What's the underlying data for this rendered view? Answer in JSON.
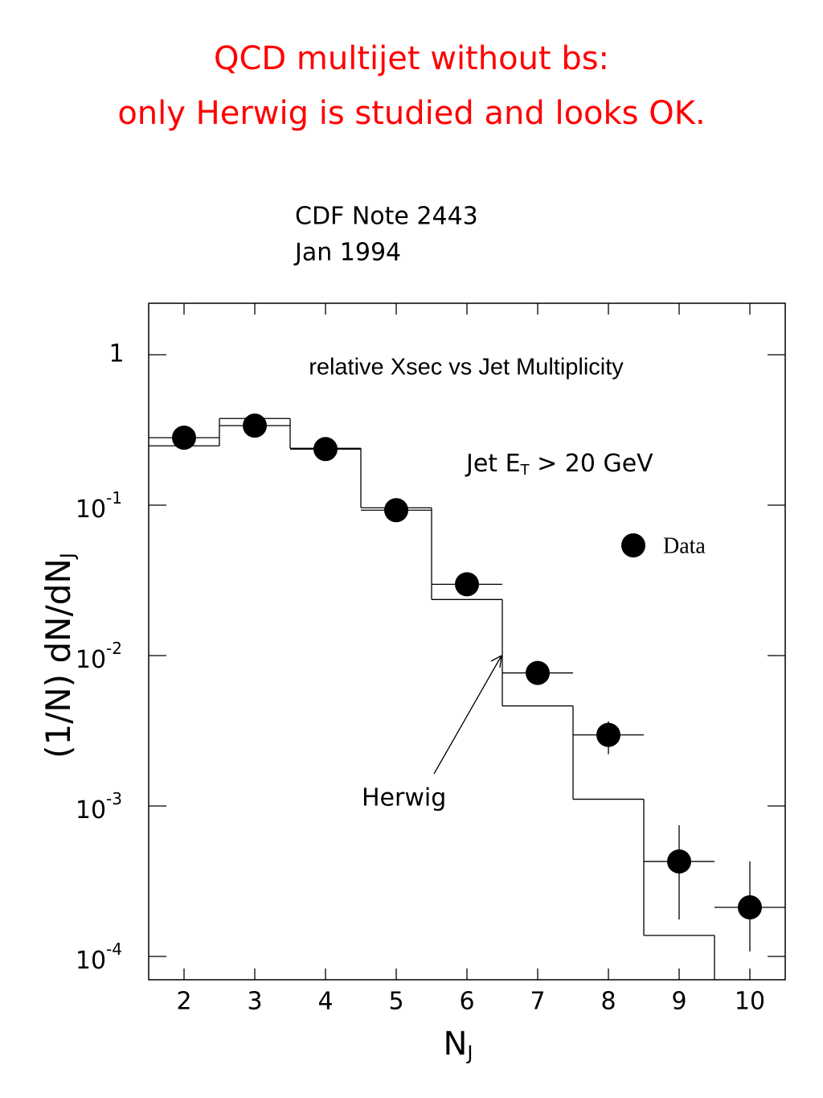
{
  "header": {
    "title_lines": [
      "QCD multijet without bs:",
      "only Herwig is studied and looks OK."
    ],
    "note_lines": [
      "CDF Note 2443",
      "Jan 1994"
    ]
  },
  "chart_data": {
    "type": "scatter",
    "title": "relative Xsec vs Jet Multiplicity",
    "x_label": [
      "N",
      "J"
    ],
    "y_label": [
      "(1/N)  dN/dN",
      "J"
    ],
    "annotation": [
      "Jet E",
      "T",
      " > 20 GeV"
    ],
    "arrow_label": "Herwig",
    "log_y": true,
    "xlim": [
      1.5,
      10.5
    ],
    "xticks": [
      2,
      3,
      4,
      5,
      6,
      7,
      8,
      9,
      10
    ],
    "ylim": [
      7e-05,
      2.2
    ],
    "yticks": [
      1,
      {
        "value": 0.1,
        "label": [
          "10",
          "-1"
        ]
      },
      {
        "value": 0.01,
        "label": [
          "10",
          "-2"
        ]
      },
      {
        "value": 0.001,
        "label": [
          "10",
          "-3"
        ]
      },
      {
        "value": 0.0001,
        "label": [
          "10",
          "-4"
        ]
      }
    ],
    "x": [
      2,
      3,
      4,
      5,
      6,
      7,
      8,
      9,
      10
    ],
    "series": [
      {
        "name": "Data",
        "color": "#000000",
        "values": [
          0.281,
          0.338,
          0.236,
          0.0926,
          0.0298,
          0.00767,
          0.00297,
          0.000428,
          0.000212
        ],
        "lower": [
          null,
          null,
          null,
          null,
          null,
          null,
          0.00221,
          0.000176,
          0.000108
        ],
        "upper": [
          null,
          null,
          null,
          null,
          null,
          null,
          0.00366,
          0.000746,
          0.000428
        ]
      },
      {
        "name": "Herwig",
        "color": "#000000",
        "values": [
          0.248,
          0.377,
          0.239,
          0.0961,
          0.0236,
          0.00463,
          0.00111,
          0.000138,
          null
        ]
      }
    ]
  }
}
